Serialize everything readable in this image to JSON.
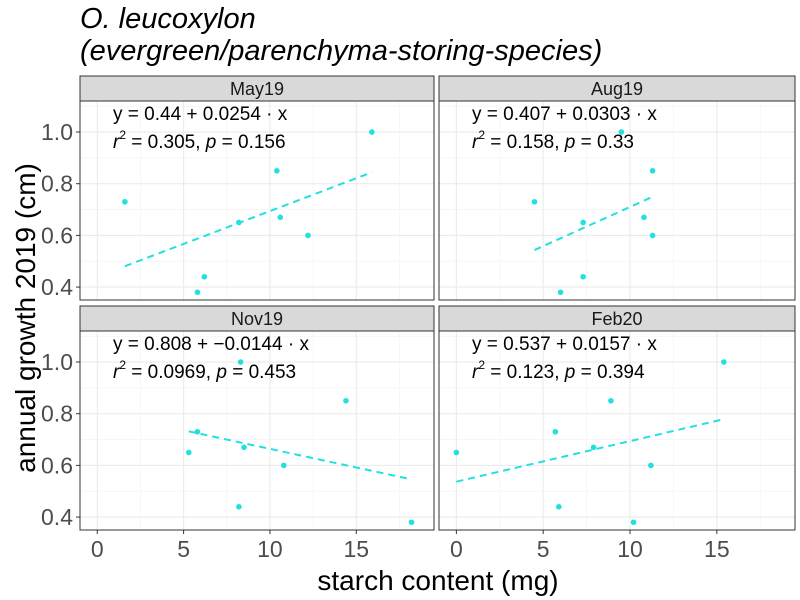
{
  "chart_data": {
    "type": "scatter",
    "title_line1": "O. leucoxylon",
    "title_line2": "(evergreen/parenchyma-storing-species)",
    "xlabel": "starch content (mg)",
    "ylabel": "annual growth 2019 (cm)",
    "xlim": [
      -1,
      19.5
    ],
    "ylim": [
      0.35,
      1.12
    ],
    "x_ticks": [
      0,
      5,
      10,
      15
    ],
    "y_ticks": [
      0.4,
      0.6,
      0.8,
      1.0
    ],
    "y_tick_labels": [
      "0.4",
      "0.6",
      "0.8",
      "1.0"
    ],
    "grid": true,
    "point_color": "#22e0e0",
    "line_color": "#22e0e0",
    "strip_fill": "#d9d9d9",
    "panels": [
      {
        "name": "May19",
        "eq_text": "y = 0.44 + 0.0254 · x",
        "stats_r2": "= 0.305,",
        "stats_p": "= 0.156",
        "points": [
          [
            1.6,
            0.73
          ],
          [
            5.8,
            0.38
          ],
          [
            6.2,
            0.44
          ],
          [
            8.2,
            0.65
          ],
          [
            10.4,
            0.85
          ],
          [
            10.6,
            0.67
          ],
          [
            12.2,
            0.6
          ],
          [
            15.9,
            1.0
          ]
        ],
        "fit_range": [
          1.6,
          15.9
        ]
      },
      {
        "name": "Aug19",
        "eq_text": "y = 0.407 + 0.0303 · x",
        "stats_r2": "= 0.158,",
        "stats_p": "= 0.33",
        "points": [
          [
            4.5,
            0.73
          ],
          [
            6.0,
            0.38
          ],
          [
            7.3,
            0.65
          ],
          [
            7.3,
            0.44
          ],
          [
            9.5,
            1.0
          ],
          [
            10.8,
            0.67
          ],
          [
            11.3,
            0.85
          ],
          [
            11.3,
            0.6
          ]
        ],
        "fit_range": [
          4.5,
          11.3
        ]
      },
      {
        "name": "Nov19",
        "eq_text": "y = 0.808 + −0.0144 · x",
        "stats_r2": "= 0.0969,",
        "stats_p": "= 0.453",
        "points": [
          [
            5.3,
            0.65
          ],
          [
            5.8,
            0.73
          ],
          [
            8.2,
            0.44
          ],
          [
            8.3,
            1.0
          ],
          [
            8.5,
            0.67
          ],
          [
            10.8,
            0.6
          ],
          [
            14.4,
            0.85
          ],
          [
            18.2,
            0.38
          ]
        ],
        "fit_range": [
          5.3,
          18.2
        ]
      },
      {
        "name": "Feb20",
        "eq_text": "y = 0.537 + 0.0157 · x",
        "stats_r2": "= 0.123,",
        "stats_p": "= 0.394",
        "points": [
          [
            0.0,
            0.65
          ],
          [
            5.7,
            0.73
          ],
          [
            5.9,
            0.44
          ],
          [
            7.9,
            0.67
          ],
          [
            8.9,
            0.85
          ],
          [
            10.2,
            0.38
          ],
          [
            11.2,
            0.6
          ],
          [
            15.4,
            1.0
          ]
        ],
        "fit_range": [
          0.0,
          15.4
        ]
      }
    ]
  }
}
